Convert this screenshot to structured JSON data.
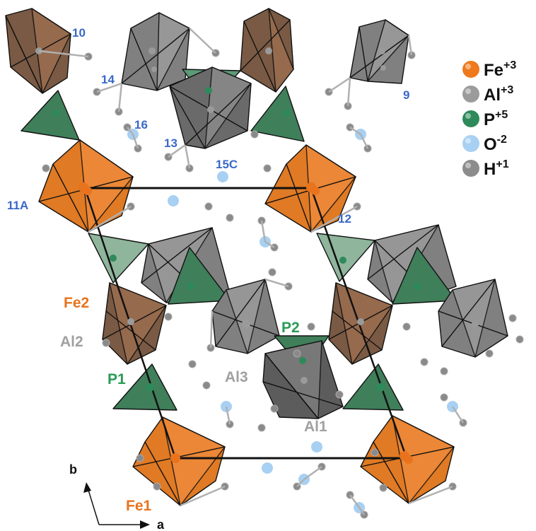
{
  "colors": {
    "fe": "#ee7a1d",
    "fe_dark": "#8c5a3a",
    "al": "#8c8c8c",
    "al_dark": "#6e6e6e",
    "p": "#3f7f5a",
    "p_light": "#8fb59c",
    "o": "#9cc6ef",
    "h": "#8a8a8a",
    "site_label": "#3a68c8",
    "fe_label": "#e8731c",
    "al_label": "#a0a0a0",
    "p_label": "#2a9a55"
  },
  "legend": {
    "items": [
      {
        "element": "Fe",
        "charge": "+3",
        "color": "#ee7a1d"
      },
      {
        "element": "Al",
        "charge": "+3",
        "color": "#9b9b9b"
      },
      {
        "element": "P",
        "charge": "+5",
        "color": "#2e8a5a"
      },
      {
        "element": "O",
        "charge": "-2",
        "color": "#a8d0f2"
      },
      {
        "element": "H",
        "charge": "+1",
        "color": "#8c8c8c"
      }
    ]
  },
  "site_labels": {
    "s10": "10",
    "s14": "14",
    "s9": "9",
    "s16": "16",
    "s13": "13",
    "s15c": "15C",
    "s11a": "11A",
    "s12": "12"
  },
  "atom_labels": {
    "fe2": "Fe2",
    "al2": "Al2",
    "p2": "P2",
    "p1": "P1",
    "al3": "Al3",
    "al1": "Al1",
    "fe1": "Fe1"
  },
  "axes": {
    "a": "a",
    "b": "b"
  }
}
